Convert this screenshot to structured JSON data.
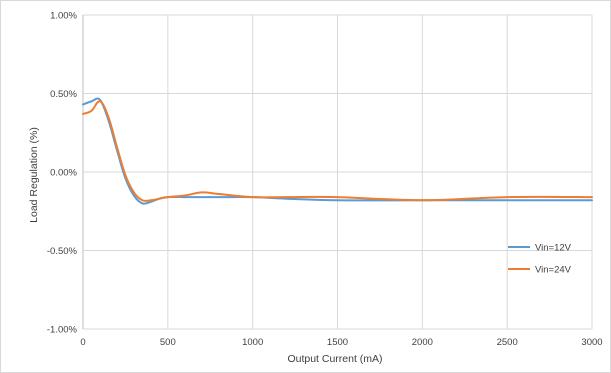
{
  "chart_data": {
    "type": "line",
    "title": "",
    "xlabel": "Output Current (mA)",
    "ylabel": "Load Regulation (%)",
    "xlim": [
      0,
      3000
    ],
    "ylim": [
      -1.0,
      1.0
    ],
    "x_ticks": [
      0,
      500,
      1000,
      1500,
      2000,
      2500,
      3000
    ],
    "x_tick_labels": [
      "0",
      "500",
      "1000",
      "1500",
      "2000",
      "2500",
      "3000"
    ],
    "y_ticks": [
      1.0,
      0.5,
      0.0,
      -0.5,
      -1.0
    ],
    "y_tick_labels": [
      "1.00%",
      "0.50%",
      "0.00%",
      "-0.50%",
      "-1.00%"
    ],
    "grid": "vertical",
    "legend_position": "right",
    "series": [
      {
        "name": "Vin=12V",
        "color": "#5B9BD5",
        "x": [
          0,
          50,
          100,
          150,
          200,
          250,
          300,
          350,
          400,
          450,
          500,
          600,
          700,
          800,
          1000,
          1200,
          1500,
          2000,
          2500,
          3000
        ],
        "y": [
          0.43,
          0.45,
          0.46,
          0.33,
          0.14,
          -0.04,
          -0.15,
          -0.2,
          -0.19,
          -0.17,
          -0.16,
          -0.16,
          -0.16,
          -0.16,
          -0.16,
          -0.17,
          -0.18,
          -0.18,
          -0.18,
          -0.18
        ]
      },
      {
        "name": "Vin=24V",
        "color": "#ED7D31",
        "x": [
          0,
          50,
          100,
          150,
          200,
          250,
          300,
          350,
          400,
          450,
          500,
          600,
          700,
          800,
          1000,
          1200,
          1500,
          2000,
          2500,
          3000
        ],
        "y": [
          0.37,
          0.39,
          0.45,
          0.35,
          0.16,
          -0.02,
          -0.13,
          -0.18,
          -0.18,
          -0.17,
          -0.16,
          -0.15,
          -0.13,
          -0.14,
          -0.16,
          -0.16,
          -0.16,
          -0.18,
          -0.16,
          -0.16
        ]
      }
    ]
  }
}
